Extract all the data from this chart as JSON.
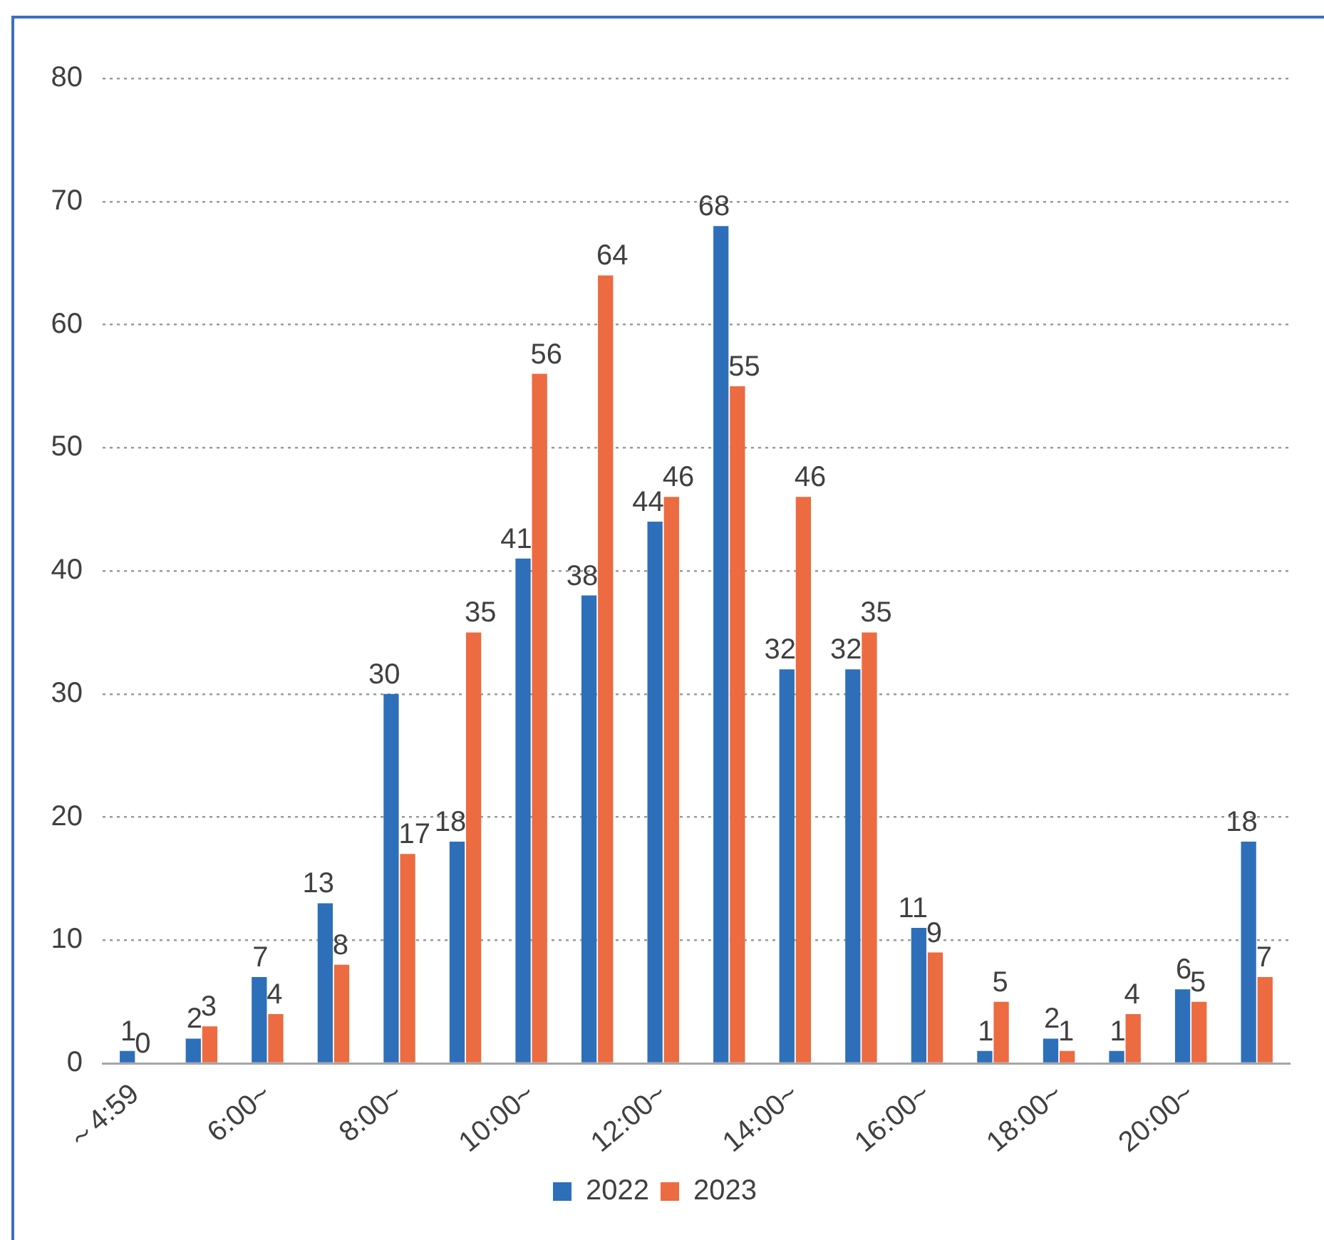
{
  "chart_data": {
    "type": "bar",
    "categories": [
      "～4:59",
      null,
      "6:00~",
      null,
      "8:00~",
      null,
      "10:00~",
      null,
      "12:00~",
      null,
      "14:00~",
      null,
      "16:00~",
      null,
      "18:00~",
      null,
      "20:00~",
      null
    ],
    "series": [
      {
        "name": "2022",
        "color": "#2e6fba",
        "values": [
          1,
          2,
          7,
          13,
          30,
          18,
          41,
          38,
          44,
          68,
          32,
          32,
          11,
          1,
          2,
          1,
          6,
          18
        ]
      },
      {
        "name": "2023",
        "color": "#ec6b40",
        "values": [
          0,
          3,
          4,
          8,
          17,
          35,
          56,
          64,
          46,
          55,
          46,
          35,
          9,
          5,
          1,
          4,
          5,
          7
        ]
      }
    ],
    "ylim": [
      0,
      80
    ],
    "yticks": [
      0,
      10,
      20,
      30,
      40,
      50,
      60,
      70,
      80
    ],
    "grid": "y",
    "legend": "bottom",
    "data_labels": true
  }
}
